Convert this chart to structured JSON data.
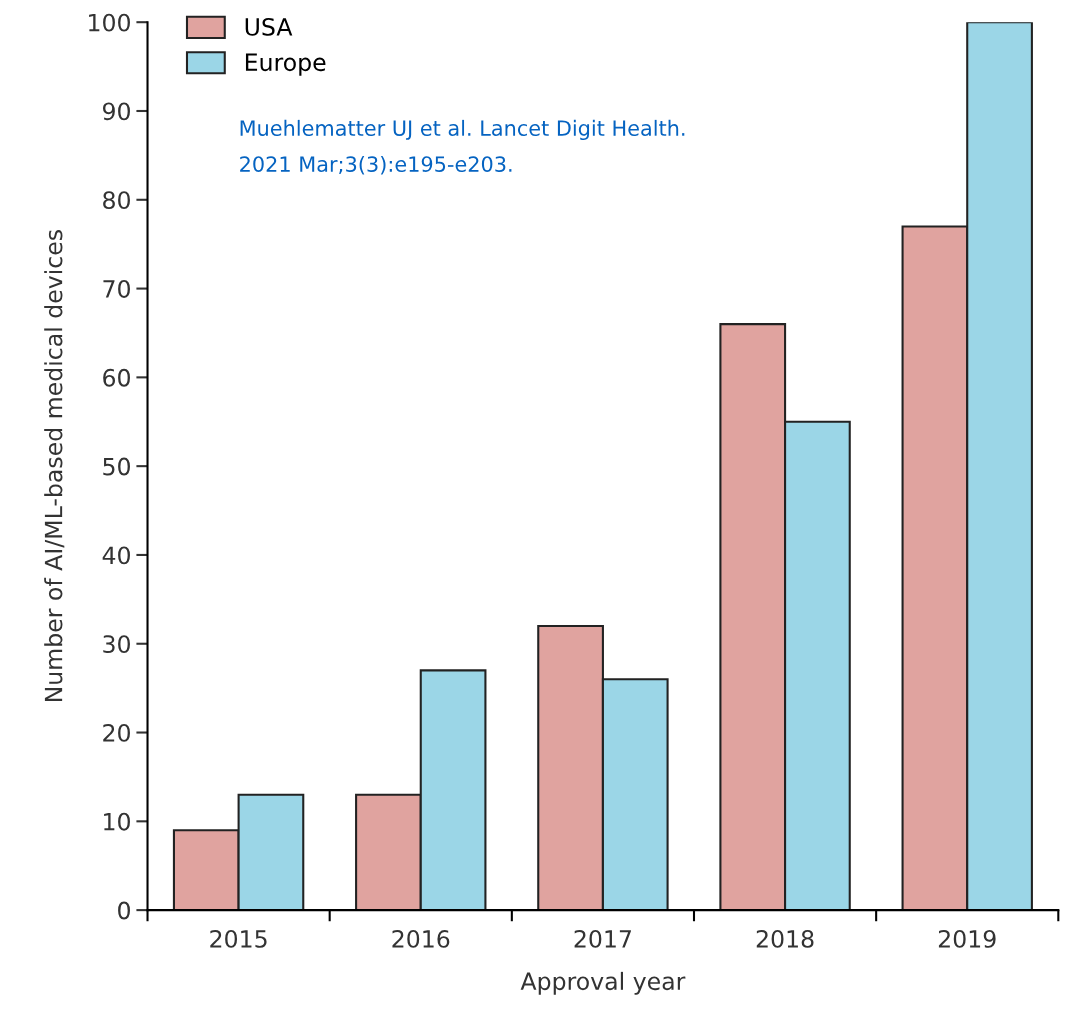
{
  "chart_data": {
    "type": "bar",
    "xlabel": "Approval year",
    "ylabel": "Number of AI/ML-based medical devices",
    "categories": [
      "2015",
      "2016",
      "2017",
      "2018",
      "2019"
    ],
    "series": [
      {
        "name": "USA",
        "color": "#e0a39f",
        "values": [
          9,
          13,
          32,
          66,
          77
        ]
      },
      {
        "name": "Europe",
        "color": "#9bd6e7",
        "values": [
          13,
          27,
          26,
          55,
          100
        ]
      }
    ],
    "ylim": [
      0,
      100
    ],
    "yticks": [
      0,
      10,
      20,
      30,
      40,
      50,
      60,
      70,
      80,
      90,
      100
    ],
    "grid": false,
    "legend": "top left",
    "annotations": [
      "Muehlematter UJ et al. Lancet Digit Health.\n2021 Mar;3(3):e195-e203."
    ]
  }
}
